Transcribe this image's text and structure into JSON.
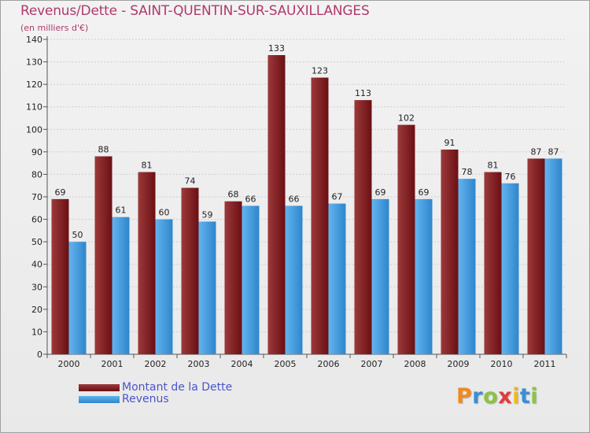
{
  "title": "Revenus/Dette - SAINT-QUENTIN-SUR-SAUXILLANGES",
  "subtitle": "(en milliers d'€)",
  "colors": {
    "dette": "#6b0f14",
    "dette_light": "#9c3a3a",
    "revenus": "#2f86cc",
    "revenus_light": "#63b4ef",
    "title": "#b0396b",
    "legend_text": "#4a55c8"
  },
  "legend": [
    {
      "label": "Montant de la Dette",
      "color": "#6b0f14"
    },
    {
      "label": "Revenus",
      "color": "#3d95dc"
    }
  ],
  "logo": {
    "letters": [
      "P",
      "r",
      "o",
      "x",
      "i",
      "t",
      "i"
    ],
    "colors": [
      "#f08a20",
      "#3a8fd6",
      "#8bc43f",
      "#e03b3b",
      "#f0b820",
      "#3a8fd6",
      "#8bc43f"
    ]
  },
  "chart_data": {
    "type": "bar",
    "title": "Revenus/Dette - SAINT-QUENTIN-SUR-SAUXILLANGES",
    "ylabel": "(en milliers d'€)",
    "categories": [
      "2000",
      "2001",
      "2002",
      "2003",
      "2004",
      "2005",
      "2006",
      "2007",
      "2008",
      "2009",
      "2010",
      "2011"
    ],
    "series": [
      {
        "name": "Montant de la Dette",
        "values": [
          69,
          88,
          81,
          74,
          68,
          133,
          123,
          113,
          102,
          91,
          81,
          87
        ]
      },
      {
        "name": "Revenus",
        "values": [
          50,
          61,
          60,
          59,
          66,
          66,
          67,
          69,
          69,
          78,
          76,
          87
        ]
      }
    ],
    "ylim": [
      0,
      140
    ],
    "yticks": [
      0,
      10,
      20,
      30,
      40,
      50,
      60,
      70,
      80,
      90,
      100,
      110,
      120,
      130,
      140
    ],
    "grid": true,
    "legend_position": "bottom-left"
  }
}
